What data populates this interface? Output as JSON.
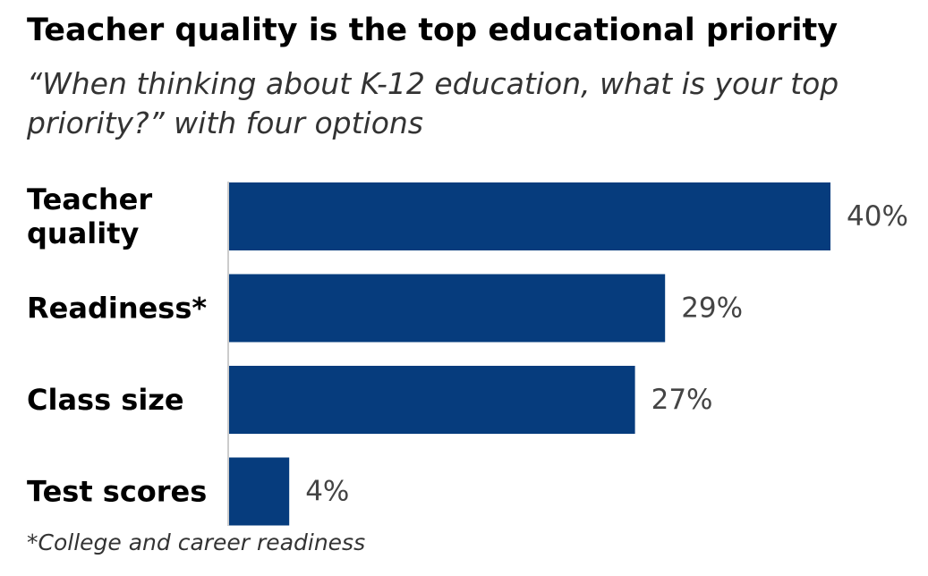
{
  "chart_data": {
    "type": "bar",
    "orientation": "horizontal",
    "title": "Teacher quality is the top educational priority",
    "subtitle": "“When thinking about K-12 education, what is your top priority?” with four options",
    "categories": [
      [
        "Teacher",
        "quality"
      ],
      [
        "Readiness*"
      ],
      [
        "Class size"
      ],
      [
        "Test scores"
      ]
    ],
    "values": [
      40,
      29,
      27,
      4
    ],
    "value_labels": [
      "40%",
      "29%",
      "27%",
      "4%"
    ],
    "xlim": [
      0,
      40
    ],
    "grid": false,
    "footnote": "*College and career readiness",
    "colors": {
      "bar": "#063c7d",
      "axis": "#cccccc"
    }
  }
}
